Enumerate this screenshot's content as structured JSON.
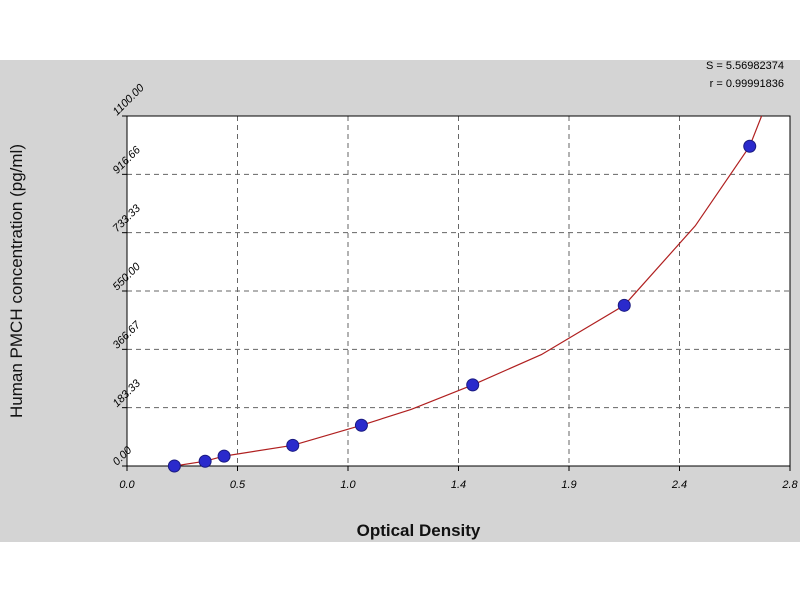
{
  "chart_data": {
    "type": "scatter",
    "xlabel": "Optical Density",
    "ylabel": "Human PMCH concentration (pg/ml)",
    "xlim": [
      0.0,
      2.8
    ],
    "ylim": [
      0.0,
      1100.0
    ],
    "x_ticks": [
      "0.0",
      "0.5",
      "1.0",
      "1.4",
      "1.9",
      "2.4",
      "2.8"
    ],
    "y_ticks": [
      "0.00",
      "183.33",
      "366.67",
      "550.00",
      "733.33",
      "916.66",
      "1100.00"
    ],
    "grid": true,
    "fit_stats": [
      "S = 5.56982374",
      "r = 0.99991836"
    ],
    "points": [
      {
        "x": 0.2,
        "y": 0
      },
      {
        "x": 0.33,
        "y": 15
      },
      {
        "x": 0.41,
        "y": 31
      },
      {
        "x": 0.7,
        "y": 65
      },
      {
        "x": 0.99,
        "y": 128
      },
      {
        "x": 1.46,
        "y": 255
      },
      {
        "x": 2.1,
        "y": 505
      },
      {
        "x": 2.63,
        "y": 1005
      }
    ],
    "curve": [
      {
        "x": 0.2,
        "y": 0
      },
      {
        "x": 0.33,
        "y": 15
      },
      {
        "x": 0.41,
        "y": 31
      },
      {
        "x": 0.7,
        "y": 65
      },
      {
        "x": 0.99,
        "y": 128
      },
      {
        "x": 1.2,
        "y": 178
      },
      {
        "x": 1.46,
        "y": 255
      },
      {
        "x": 1.75,
        "y": 350
      },
      {
        "x": 2.1,
        "y": 505
      },
      {
        "x": 2.4,
        "y": 755
      },
      {
        "x": 2.63,
        "y": 1005
      },
      {
        "x": 2.68,
        "y": 1100
      }
    ],
    "colors": {
      "background": "#d4d4d4",
      "plot_area": "#ffffff",
      "grid": "#666666",
      "point": "#2a2acc",
      "curve": "#b02020"
    }
  }
}
